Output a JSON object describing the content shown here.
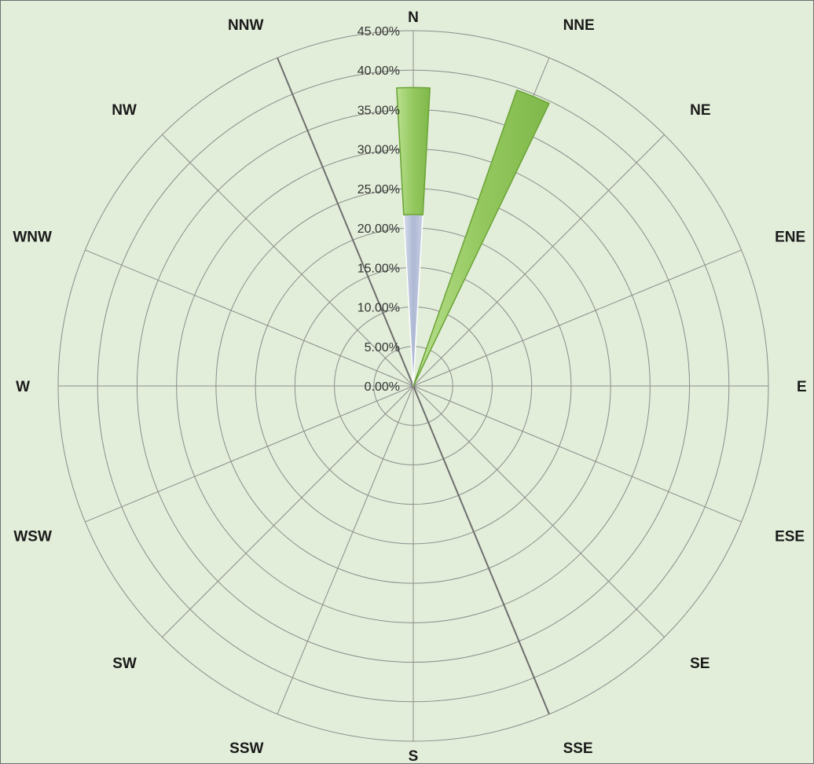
{
  "chart_data": {
    "type": "radar",
    "subtype": "stacked wind rose",
    "directions": [
      "N",
      "NNE",
      "NE",
      "ENE",
      "E",
      "ESE",
      "SE",
      "SSE",
      "S",
      "SSW",
      "SW",
      "WSW",
      "W",
      "WNW",
      "NW",
      "NNW"
    ],
    "radial_ticks": [
      "0.00%",
      "5.00%",
      "10.00%",
      "15.00%",
      "20.00%",
      "25.00%",
      "30.00%",
      "35.00%",
      "40.00%",
      "45.00%"
    ],
    "rlim": [
      0,
      45
    ],
    "grid": true,
    "legend": "none",
    "series": [
      {
        "color": "#b8c3dc",
        "values": [
          21.7,
          0,
          0,
          0,
          0,
          0,
          0,
          0,
          0,
          0,
          0,
          0,
          0,
          0,
          0,
          0
        ]
      },
      {
        "color": "#9ccc6b",
        "values": [
          16.1,
          39.7,
          0,
          0,
          0,
          0,
          0,
          0,
          0,
          0,
          0,
          0,
          0,
          0,
          0,
          0
        ]
      }
    ]
  }
}
